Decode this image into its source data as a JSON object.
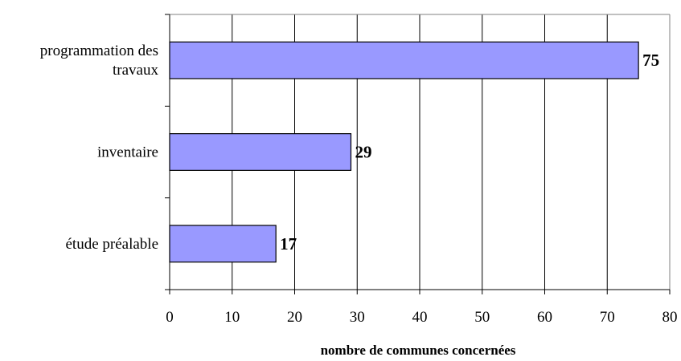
{
  "chart_data": {
    "type": "bar",
    "orientation": "horizontal",
    "categories": [
      [
        "programmation des",
        "travaux"
      ],
      [
        "inventaire"
      ],
      [
        "étude préalable"
      ]
    ],
    "values": [
      75,
      29,
      17
    ],
    "data_labels": [
      "75",
      "29",
      "17"
    ],
    "xlabel": "nombre de communes concernées",
    "ylabel": "",
    "title": "",
    "xlim": [
      0,
      80
    ],
    "xticks": [
      0,
      10,
      20,
      30,
      40,
      50,
      60,
      70,
      80
    ],
    "xtick_labels": [
      "0",
      "10",
      "20",
      "30",
      "40",
      "50",
      "60",
      "70",
      "80"
    ],
    "grid": "vertical",
    "legend": "none",
    "colors": {
      "bar_fill": "#9999ff",
      "bar_stroke": "#000000",
      "grid": "#000000",
      "frame": "#808080",
      "background": "#ffffff"
    }
  }
}
